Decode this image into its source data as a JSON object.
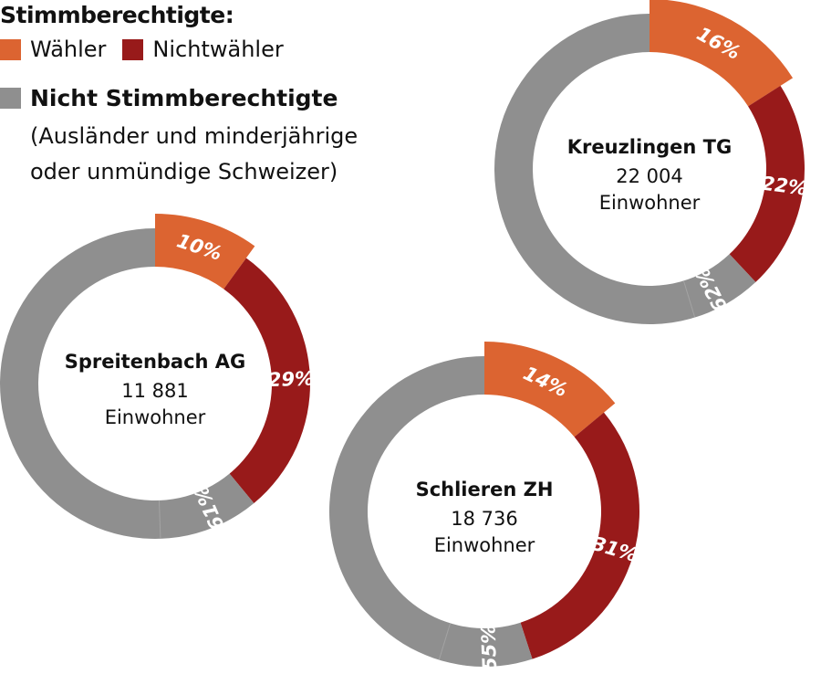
{
  "chart_data": {
    "type": "pie",
    "legend": {
      "title": "Stimmberechtigte:",
      "items": [
        {
          "label": "Wähler",
          "color": "#dc6431"
        },
        {
          "label": "Nichtwähler",
          "color": "#981a1a"
        },
        {
          "label": "Nicht Stimmberechtigte",
          "color": "#8f8f8f"
        }
      ],
      "note": [
        "(Ausländer und minderjährige",
        "oder unmündige Schweizer)"
      ]
    },
    "charts": [
      {
        "name": "Kreuzlingen TG",
        "population": "22 004",
        "unit": "Einwohner",
        "slices": [
          {
            "label": "Wähler",
            "value": 16,
            "text": "16%"
          },
          {
            "label": "Nichtwähler",
            "value": 22,
            "text": "22%"
          },
          {
            "label": "Nicht Stimmberechtigte",
            "value": 62,
            "text": "62%"
          }
        ]
      },
      {
        "name": "Spreitenbach AG",
        "population": "11 881",
        "unit": "Einwohner",
        "slices": [
          {
            "label": "Wähler",
            "value": 10,
            "text": "10%"
          },
          {
            "label": "Nichtwähler",
            "value": 29,
            "text": "29%"
          },
          {
            "label": "Nicht Stimmberechtigte",
            "value": 61,
            "text": "61%"
          }
        ]
      },
      {
        "name": "Schlieren ZH",
        "population": "18 736",
        "unit": "Einwohner",
        "slices": [
          {
            "label": "Wähler",
            "value": 14,
            "text": "14%"
          },
          {
            "label": "Nichtwähler",
            "value": 31,
            "text": "31%"
          },
          {
            "label": "Nicht Stimmberechtigte",
            "value": 55,
            "text": "55%"
          }
        ]
      }
    ]
  }
}
